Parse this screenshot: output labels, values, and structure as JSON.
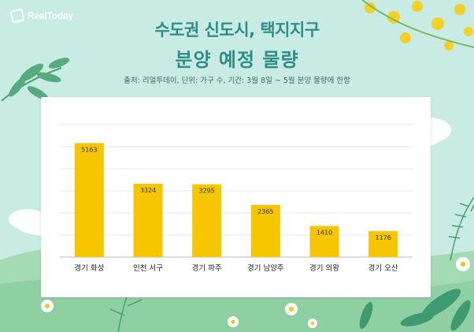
{
  "brand": {
    "name": "RealToday"
  },
  "header": {
    "title_line1": "수도권 신도시, 택지지구",
    "title_line2": "분양 예정 물량",
    "subtitle": "출처: 리얼투데이, 단위: 가구 수, 기간: 3월 8일 ~ 5월 분양 물량에 한함"
  },
  "colors": {
    "bar": "#f6c600",
    "title": "#2f8d88",
    "background": "#c8ece4"
  },
  "chart_data": {
    "type": "bar",
    "title": "수도권 신도시, 택지지구 분양 예정 물량",
    "categories": [
      "경기 화성",
      "인천 서구",
      "경기 파주",
      "경기 남양주",
      "경기 의왕",
      "경기 오산"
    ],
    "values": [
      5163,
      3324,
      3295,
      2365,
      1410,
      1176
    ],
    "xlabel": "",
    "ylabel": "",
    "ylim": [
      0,
      6000
    ],
    "grid": true,
    "legend": "none"
  }
}
